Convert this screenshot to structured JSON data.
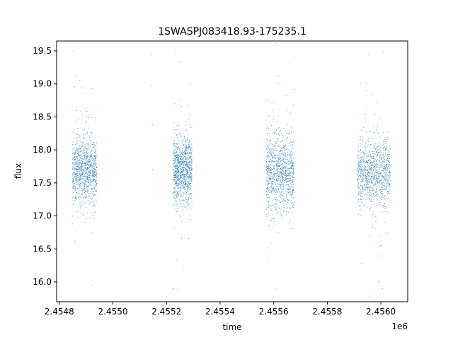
{
  "chart_data": {
    "type": "scatter",
    "title": "1SWASPJ083418.93-175235.1",
    "xlabel": "time",
    "ylabel": "flux",
    "x_offset_label": "1e6",
    "xlim": [
      2.45479,
      2.4561
    ],
    "ylim": [
      15.7,
      19.65
    ],
    "x_ticks": [
      2.4548,
      2.455,
      2.4552,
      2.4554,
      2.4556,
      2.4558,
      2.456
    ],
    "x_tick_labels": [
      "2.4548",
      "2.4550",
      "2.4552",
      "2.4554",
      "2.4556",
      "2.4558",
      "2.4560"
    ],
    "y_ticks": [
      16.0,
      16.5,
      17.0,
      17.5,
      18.0,
      18.5,
      19.0,
      19.5
    ],
    "y_tick_labels": [
      "16.0",
      "16.5",
      "17.0",
      "17.5",
      "18.0",
      "18.5",
      "19.0",
      "19.5"
    ],
    "grid": false,
    "marker_color": "#1f77b4",
    "observing_seasons": [
      {
        "x_start": 2.454848,
        "x_end": 2.45494,
        "flux_median": 17.7,
        "flux_spread": 0.3
      },
      {
        "x_start": 2.455225,
        "x_end": 2.455295,
        "flux_median": 17.7,
        "flux_spread": 0.3
      },
      {
        "x_start": 2.455572,
        "x_end": 2.455675,
        "flux_median": 17.65,
        "flux_spread": 0.35
      },
      {
        "x_start": 2.455912,
        "x_end": 2.456035,
        "flux_median": 17.65,
        "flux_spread": 0.3
      }
    ],
    "sparse_points": [
      {
        "x": 2.455143,
        "y": 19.44
      },
      {
        "x": 2.455145,
        "y": 18.97
      },
      {
        "x": 2.455147,
        "y": 18.38
      },
      {
        "x": 2.455148,
        "y": 17.7
      },
      {
        "x": 2.455227,
        "y": 15.9
      },
      {
        "x": 2.455235,
        "y": 19.45
      },
      {
        "x": 2.454853,
        "y": 19.5
      },
      {
        "x": 2.45492,
        "y": 15.95
      },
      {
        "x": 2.455605,
        "y": 15.9
      },
      {
        "x": 2.456005,
        "y": 15.9
      }
    ]
  }
}
